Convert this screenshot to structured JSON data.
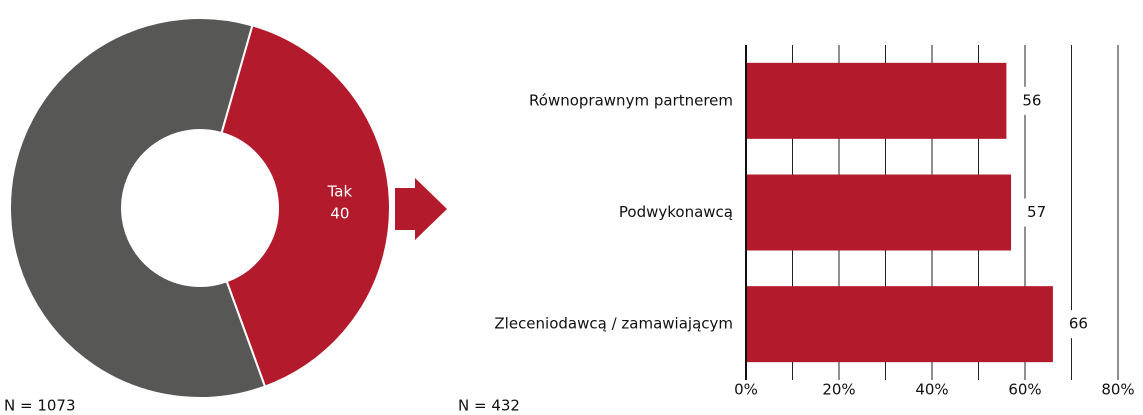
{
  "chart_data": [
    {
      "type": "donut",
      "categories": [
        "Tak",
        null
      ],
      "values": [
        40,
        60
      ],
      "colors": [
        "#b31b2c",
        "#575756"
      ],
      "note": "N = 1073"
    },
    {
      "type": "hbar",
      "categories": [
        "Równoprawnym partnerem",
        "Podwykonawcą",
        "Zleceniodawcą / zamawiającym"
      ],
      "values": [
        56,
        57,
        66
      ],
      "color": "#b31b2c",
      "xlim": [
        0,
        80
      ],
      "xticks": [
        {
          "value": 0,
          "label": "0%"
        },
        {
          "value": 20,
          "label": "20%"
        },
        {
          "value": 40,
          "label": "40%"
        },
        {
          "value": 60,
          "label": "60%"
        },
        {
          "value": 80,
          "label": "80%"
        }
      ],
      "minor_xticks": [
        10,
        30,
        50,
        70
      ],
      "grid": true,
      "note": "N = 432"
    }
  ]
}
